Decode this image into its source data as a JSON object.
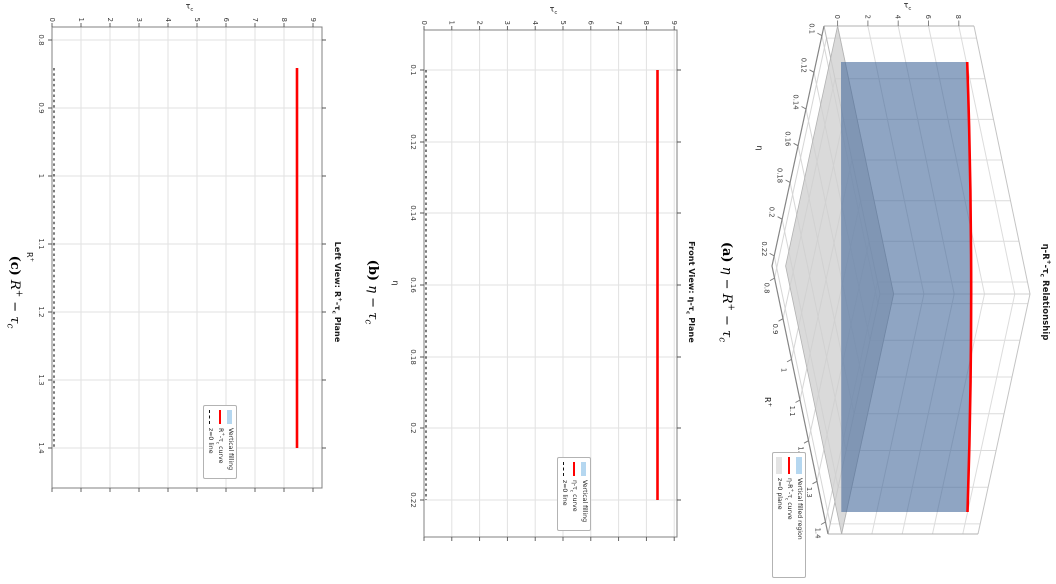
{
  "colors": {
    "curve_red": "#ff0000",
    "fill_blue_legend": "#b5d7f0",
    "surface_blue": "#44699b",
    "plane_gray": "#cfcfcf",
    "grid_gray": "#dcdcdc",
    "spine_gray": "#858585"
  },
  "panel3d": {
    "title": {
      "t1": "η-R",
      "sup": "+",
      "t2": "-τ",
      "sub": "c",
      "t3": " Relationship"
    },
    "xlabel": "η",
    "ylabel": {
      "t1": "R",
      "sup": "+"
    },
    "zlabel": {
      "t1": "τ",
      "sub": "c"
    },
    "x_ticks": [
      "0.1",
      "0.12",
      "0.14",
      "0.16",
      "0.18",
      "0.2",
      "0.22"
    ],
    "y_ticks": [
      "0.8",
      "0.9",
      "1",
      "1.1",
      "1.2",
      "1.3",
      "1.4"
    ],
    "z_ticks": [
      "0",
      "2",
      "4",
      "6",
      "8"
    ],
    "legend": {
      "fill": {
        "t1": "Vertical filled region",
        "sup": "",
        "t2": "",
        "sub": "",
        "t3": ""
      },
      "curve": {
        "t1": "η-R",
        "sup": "+",
        "t2": "-τ",
        "sub": "c",
        "t3": " curve"
      },
      "plane": {
        "t1": "z=0 plane",
        "sup": "",
        "t2": "",
        "sub": "",
        "t3": ""
      }
    }
  },
  "front": {
    "title": {
      "t1": "Front View: η-τ",
      "sup": "",
      "t2": "",
      "sub": "c",
      "t3": " Plane"
    },
    "xlabel": "η",
    "ylabel": {
      "t1": "τ",
      "sub": "c"
    },
    "x_ticks": [
      "0.1",
      "0.12",
      "0.14",
      "0.16",
      "0.18",
      "0.2",
      "0.22"
    ],
    "y_ticks": [
      "0",
      "1",
      "2",
      "3",
      "4",
      "5",
      "6",
      "7",
      "8",
      "9"
    ],
    "legend": {
      "fill": {
        "t1": "Vertical filling",
        "sup": "",
        "t2": "",
        "sub": "",
        "t3": ""
      },
      "curve": {
        "t1": "η-τ",
        "sup": "",
        "t2": "",
        "sub": "c",
        "t3": " curve"
      },
      "zline": {
        "t1": "z=0 line",
        "sup": "",
        "t2": "",
        "sub": "",
        "t3": ""
      }
    }
  },
  "left": {
    "title": {
      "t1": "Left View: R",
      "sup": "+",
      "t2": "-τ",
      "sub": "c",
      "t3": " Plane"
    },
    "xlabel": {
      "t1": "R",
      "sup": "+"
    },
    "ylabel": {
      "t1": "τ",
      "sub": "c"
    },
    "x_ticks": [
      "0.8",
      "0.9",
      "1",
      "1.1",
      "1.2",
      "1.3",
      "1.4"
    ],
    "y_ticks": [
      "0",
      "1",
      "2",
      "3",
      "4",
      "5",
      "6",
      "7",
      "8",
      "9"
    ],
    "legend": {
      "fill": {
        "t1": "Vertical filling",
        "sup": "",
        "t2": "",
        "sub": "",
        "t3": ""
      },
      "curve": {
        "t1": "R",
        "sup": "+",
        "t2": "-τ",
        "sub": "c",
        "t3": " curve"
      },
      "zline": {
        "t1": "z=0 line",
        "sup": "",
        "t2": "",
        "sub": "",
        "t3": ""
      }
    }
  },
  "captions": {
    "a": {
      "tag": "(a)",
      "p1": "η − R",
      "sup1": "+",
      "p2": " − τ",
      "sub2": "c"
    },
    "b": {
      "tag": "(b)",
      "p1": "η − τ",
      "sup1": "",
      "p2": "",
      "sub2": "c"
    },
    "c": {
      "tag": "(c)",
      "p1": "R",
      "sup1": "+",
      "p2": " − τ",
      "sub2": "c"
    }
  },
  "chart_data": [
    {
      "type": "area",
      "name": "3d-relationship",
      "title": "η-R⁺-τc Relationship",
      "xlabel": "η",
      "ylabel": "R⁺",
      "zlabel": "τc",
      "x_ticks": [
        0.1,
        0.12,
        0.14,
        0.16,
        0.18,
        0.2,
        0.22
      ],
      "y_ticks": [
        0.8,
        0.9,
        1.0,
        1.1,
        1.2,
        1.3,
        1.4
      ],
      "z_ticks": [
        0,
        2,
        4,
        6,
        8
      ],
      "curve": {
        "eta": [
          0.1,
          0.16,
          0.22
        ],
        "rplus": [
          0.835,
          1.12,
          1.4
        ],
        "tau_c": [
          8.33,
          8.55,
          8.33
        ]
      },
      "elements": [
        "vertical filled curtain from z=0 plane up to curve",
        "red curve at τc≈8.4",
        "gray z=0 plane"
      ],
      "legend": [
        "Vertical filled region",
        "η-R⁺-τc curve",
        "z=0 plane"
      ],
      "legend_position": "lower-right"
    },
    {
      "type": "line",
      "name": "front-view",
      "title": "Front View: η-τc Plane",
      "xlabel": "η",
      "ylabel": "τc",
      "xlim": [
        0.089,
        0.23
      ],
      "ylim": [
        0,
        9.1
      ],
      "x_ticks": [
        0.1,
        0.12,
        0.14,
        0.16,
        0.18,
        0.2,
        0.22
      ],
      "y_ticks": [
        0,
        1,
        2,
        3,
        4,
        5,
        6,
        7,
        8,
        9
      ],
      "grid": true,
      "series": [
        {
          "name": "η-τc curve",
          "x": [
            0.1,
            0.22
          ],
          "y": [
            8.4,
            8.4
          ],
          "color": "#ff0000",
          "style": "solid"
        },
        {
          "name": "z=0 line",
          "x": [
            0.1,
            0.22
          ],
          "y": [
            0,
            0
          ],
          "color": "#000000",
          "style": "dashed"
        }
      ],
      "legend": [
        "Vertical filling",
        "η-τc curve",
        "z=0 line"
      ],
      "legend_position": "right, below curve"
    },
    {
      "type": "line",
      "name": "left-view",
      "title": "Left View: R⁺-τc Plane",
      "xlabel": "R⁺",
      "ylabel": "τc",
      "xlim": [
        0.78,
        1.46
      ],
      "ylim": [
        0,
        9.3
      ],
      "x_ticks": [
        0.8,
        0.9,
        1.0,
        1.1,
        1.2,
        1.3,
        1.4
      ],
      "y_ticks": [
        0,
        1,
        2,
        3,
        4,
        5,
        6,
        7,
        8,
        9
      ],
      "grid": true,
      "series": [
        {
          "name": "R⁺-τc curve",
          "x": [
            0.835,
            1.4
          ],
          "y": [
            8.45,
            8.45
          ],
          "color": "#ff0000",
          "style": "solid"
        },
        {
          "name": "z=0 line",
          "x": [
            0.835,
            1.4
          ],
          "y": [
            0,
            0
          ],
          "color": "#000000",
          "style": "dashed"
        }
      ],
      "legend": [
        "Vertical filling",
        "R⁺-τc curve",
        "z=0 line"
      ],
      "legend_position": "right, below curve"
    }
  ]
}
